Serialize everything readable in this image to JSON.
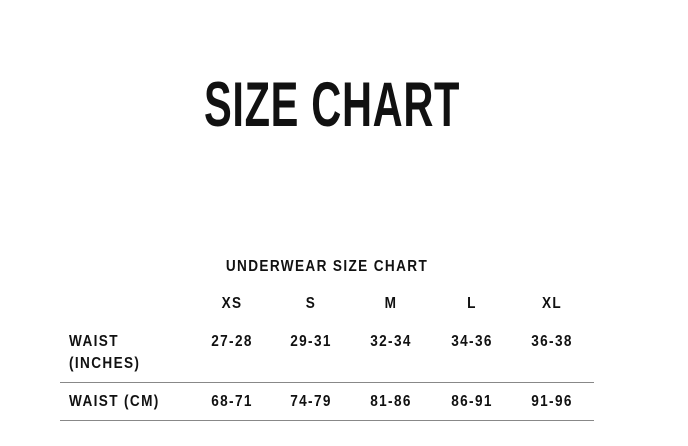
{
  "title": "SIZE CHART",
  "table": {
    "caption": "UNDERWEAR SIZE CHART",
    "sizes": [
      "XS",
      "S",
      "M",
      "L",
      "XL"
    ],
    "rows": [
      {
        "label_line1": "WAIST",
        "label_line2": "(INCHES)",
        "values": [
          "27-28",
          "29-31",
          "32-34",
          "34-36",
          "36-38"
        ]
      },
      {
        "label_line1": "WAIST (CM)",
        "values": [
          "68-71",
          "74-79",
          "81-86",
          "86-91",
          "91-96"
        ]
      }
    ]
  }
}
